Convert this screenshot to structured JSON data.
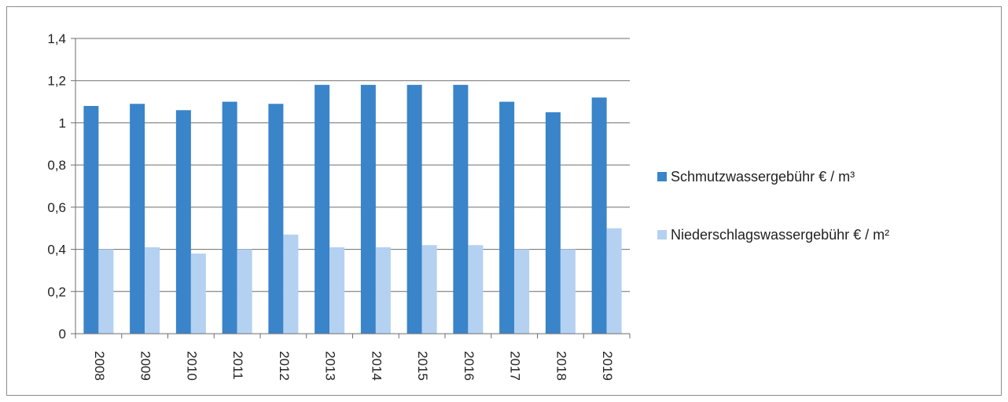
{
  "chart_data": {
    "type": "bar",
    "categories": [
      "2008",
      "2009",
      "2010",
      "2011",
      "2012",
      "2013",
      "2014",
      "2015",
      "2016",
      "2017",
      "2018",
      "2019"
    ],
    "series": [
      {
        "name": "Schmutzwassergebühr € / m³",
        "color": "#3a84c9",
        "values": [
          1.08,
          1.09,
          1.06,
          1.1,
          1.09,
          1.18,
          1.18,
          1.18,
          1.18,
          1.1,
          1.05,
          1.12
        ]
      },
      {
        "name": "Niederschlagswassergebühr € / m²",
        "color": "#b4d1f2",
        "values": [
          0.4,
          0.41,
          0.38,
          0.4,
          0.47,
          0.41,
          0.41,
          0.42,
          0.42,
          0.4,
          0.4,
          0.5
        ]
      }
    ],
    "yticks": [
      "0",
      "0,2",
      "0,4",
      "0,6",
      "0,8",
      "1",
      "1,2",
      "1,4"
    ],
    "ylim": [
      0,
      1.4
    ],
    "grid": true,
    "legend": "right",
    "title": "",
    "xlabel": "",
    "ylabel": ""
  }
}
